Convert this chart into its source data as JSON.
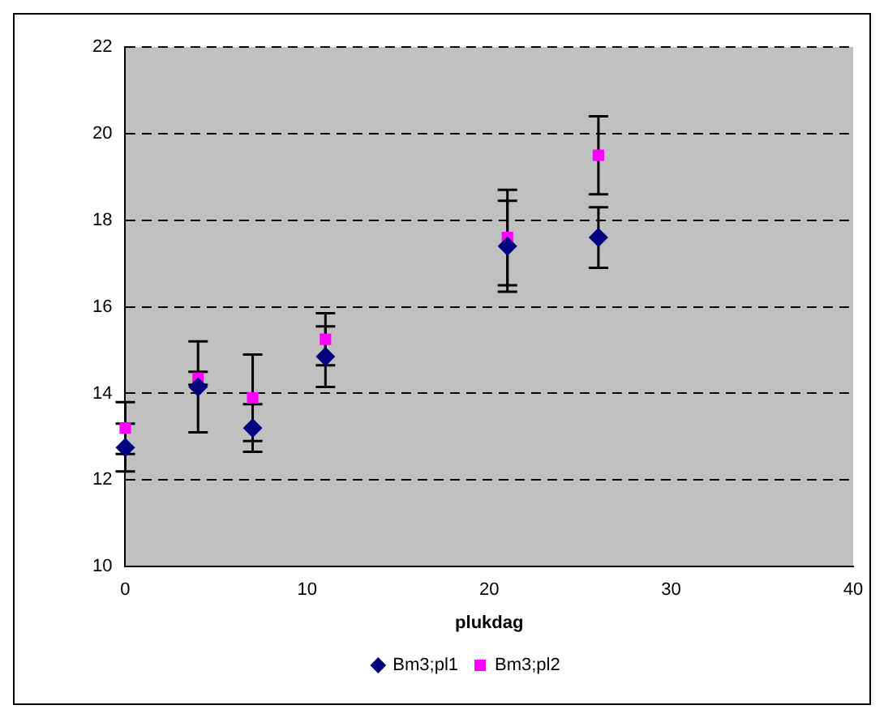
{
  "chart_data": {
    "type": "scatter",
    "xlabel": "plukdag",
    "xlim": [
      0,
      40
    ],
    "xticks": [
      0,
      10,
      20,
      30,
      40
    ],
    "ylim": [
      10,
      22
    ],
    "yticks": [
      10,
      12,
      14,
      16,
      18,
      20,
      22
    ],
    "grid": "y",
    "legend": "bottom",
    "series": [
      {
        "name": "Bm3;pl1",
        "color": "#000080",
        "marker": "diamond",
        "x": [
          0,
          4,
          7,
          11,
          21,
          26
        ],
        "values": [
          12.75,
          14.15,
          13.2,
          14.85,
          17.4,
          17.6
        ],
        "errors": [
          0.55,
          1.05,
          0.55,
          0.7,
          1.05,
          0.7
        ]
      },
      {
        "name": "Bm3;pl2",
        "color": "#ff00ff",
        "marker": "square",
        "x": [
          0,
          4,
          7,
          11,
          21,
          26
        ],
        "values": [
          13.2,
          14.35,
          13.9,
          15.25,
          17.6,
          19.5
        ],
        "errors": [
          0.6,
          0.15,
          1.0,
          0.6,
          1.1,
          0.9
        ]
      }
    ]
  }
}
